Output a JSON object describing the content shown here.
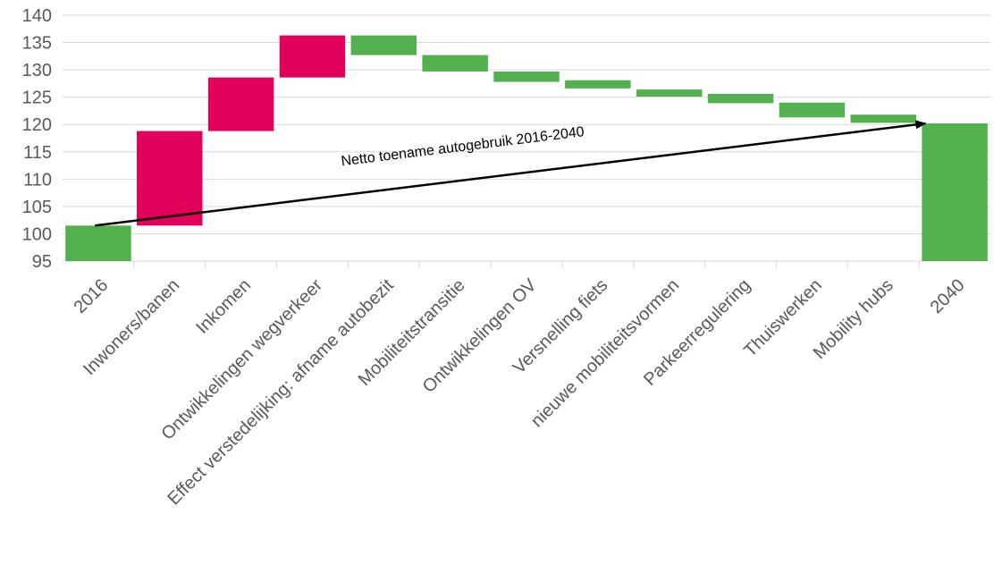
{
  "colors": {
    "increase": "#e2005a",
    "decrease": "#52b04e",
    "total": "#52b04e"
  },
  "chart_data": {
    "type": "waterfall",
    "title": "",
    "xlabel": "",
    "ylabel": "",
    "ylim": [
      95,
      140
    ],
    "yticks": [
      95,
      100,
      105,
      110,
      115,
      120,
      125,
      130,
      135,
      140
    ],
    "grid": true,
    "bars": [
      {
        "category": "2016",
        "kind": "total",
        "start": 95,
        "end": 101.5
      },
      {
        "category": "Inwoners/banen",
        "kind": "increase",
        "start": 101.5,
        "end": 118.8
      },
      {
        "category": "Inkomen",
        "kind": "increase",
        "start": 118.8,
        "end": 128.6
      },
      {
        "category": "Ontwikkelingen wegverkeer",
        "kind": "increase",
        "start": 128.6,
        "end": 136.3
      },
      {
        "category": "Effect verstedelijking: afname autobezit",
        "kind": "decrease",
        "start": 136.3,
        "end": 132.7
      },
      {
        "category": "Mobiliteitstransitie",
        "kind": "decrease",
        "start": 132.7,
        "end": 129.7
      },
      {
        "category": "Ontwikkelingen OV",
        "kind": "decrease",
        "start": 129.7,
        "end": 127.8
      },
      {
        "category": "Versnelling fiets",
        "kind": "decrease",
        "start": 128.1,
        "end": 126.6
      },
      {
        "category": "nieuwe mobiliteitsvormen",
        "kind": "decrease",
        "start": 126.4,
        "end": 125.1
      },
      {
        "category": "Parkeerregulering",
        "kind": "decrease",
        "start": 125.6,
        "end": 123.9
      },
      {
        "category": "Thuiswerken",
        "kind": "decrease",
        "start": 124.0,
        "end": 121.3
      },
      {
        "category": "Mobility hubs",
        "kind": "decrease",
        "start": 121.8,
        "end": 120.3
      },
      {
        "category": "2040",
        "kind": "total",
        "start": 95,
        "end": 120.2
      }
    ],
    "annotation": {
      "text": "Netto toename autogebruik 2016-2040",
      "arrow_from": {
        "category": "2016",
        "value": 101.5
      },
      "arrow_to": {
        "category": "2040",
        "value": 120.2
      }
    }
  }
}
